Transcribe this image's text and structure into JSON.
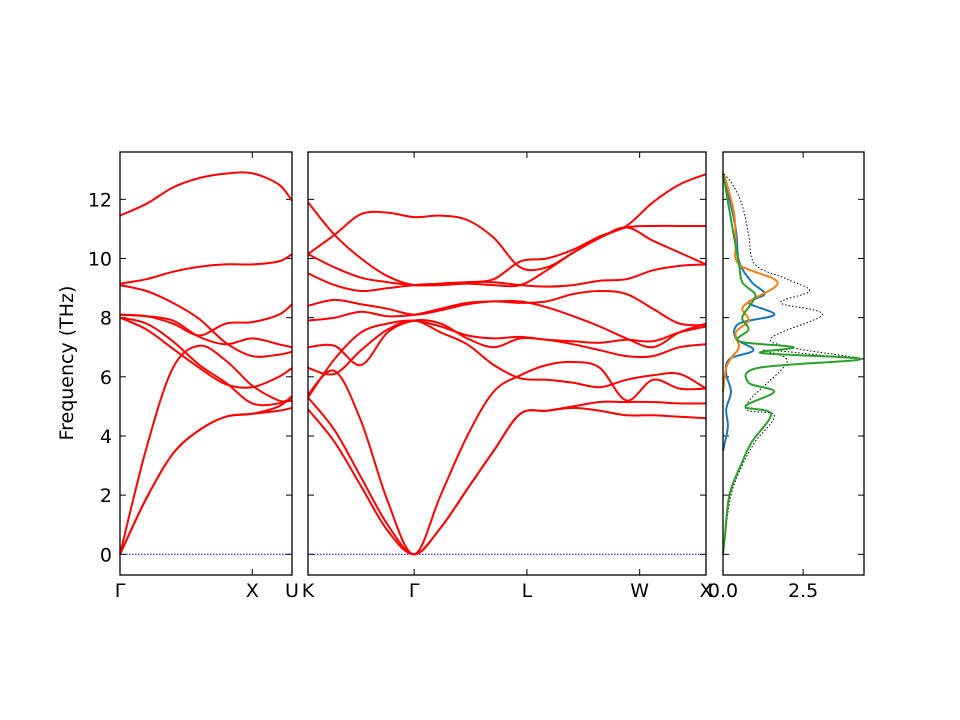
{
  "chart_data": [
    {
      "type": "line",
      "panel": "bands-left",
      "ylabel": "Frequency (THz)",
      "ylim": [
        -0.7,
        13.6
      ],
      "yticks": [
        0,
        2,
        4,
        6,
        8,
        10,
        12
      ],
      "xticks": [
        "Γ",
        "X",
        "U"
      ],
      "band_color": "#ff0000",
      "zero_line_color": "#0000ff",
      "series": [
        {
          "x": [
            0,
            0.2,
            0.4,
            0.6,
            0.8,
            1.0,
            1.2,
            1.3
          ],
          "values": [
            0,
            1.9,
            3.4,
            4.2,
            4.65,
            4.75,
            4.85,
            4.95
          ]
        },
        {
          "x": [
            0,
            0.2,
            0.4,
            0.6,
            0.8,
            1.0,
            1.2,
            1.3
          ],
          "values": [
            0,
            1.9,
            3.4,
            4.2,
            4.65,
            4.75,
            5.0,
            5.35
          ]
        },
        {
          "x": [
            0,
            0.2,
            0.4,
            0.6,
            0.8,
            1.0,
            1.2,
            1.3
          ],
          "values": [
            0,
            3.6,
            6.3,
            7.05,
            6.55,
            5.7,
            5.2,
            5.2
          ]
        },
        {
          "x": [
            0,
            0.2,
            0.4,
            0.6,
            0.8,
            1.0,
            1.2,
            1.3
          ],
          "values": [
            8.0,
            7.6,
            6.95,
            6.3,
            5.75,
            5.65,
            6.0,
            6.3
          ]
        },
        {
          "x": [
            0,
            0.2,
            0.4,
            0.6,
            0.8,
            1.0,
            1.2,
            1.3
          ],
          "values": [
            8.0,
            7.8,
            7.2,
            6.4,
            5.8,
            5.1,
            5.1,
            5.3
          ]
        },
        {
          "x": [
            0,
            0.2,
            0.4,
            0.6,
            0.8,
            1.0,
            1.2,
            1.3
          ],
          "values": [
            8.1,
            8.05,
            7.9,
            7.35,
            7.1,
            7.3,
            7.1,
            7.0
          ]
        },
        {
          "x": [
            0,
            0.2,
            0.4,
            0.6,
            0.8,
            1.0,
            1.2,
            1.3
          ],
          "values": [
            8.1,
            8.05,
            7.8,
            7.4,
            7.8,
            7.85,
            8.1,
            8.45
          ]
        },
        {
          "x": [
            0,
            0.2,
            0.4,
            0.6,
            0.8,
            1.0,
            1.2,
            1.3
          ],
          "values": [
            9.1,
            8.9,
            8.5,
            7.95,
            7.15,
            6.7,
            6.75,
            6.85
          ]
        },
        {
          "x": [
            0,
            0.2,
            0.4,
            0.6,
            0.8,
            1.0,
            1.2,
            1.3
          ],
          "values": [
            9.15,
            9.3,
            9.55,
            9.72,
            9.8,
            9.8,
            9.9,
            10.15
          ]
        },
        {
          "x": [
            0,
            0.2,
            0.4,
            0.6,
            0.8,
            1.0,
            1.2,
            1.3
          ],
          "values": [
            11.45,
            11.85,
            12.4,
            12.72,
            12.87,
            12.88,
            12.5,
            11.95
          ]
        }
      ]
    },
    {
      "type": "line",
      "panel": "bands-right",
      "ylim": [
        -0.7,
        13.6
      ],
      "xticks": [
        "K",
        "Γ",
        "L",
        "W",
        "X"
      ],
      "band_color": "#ff0000",
      "zero_line_color": "#0000ff",
      "series": [
        {
          "x": [
            0,
            0.4,
            0.8,
            1.2,
            1.6,
            2.0,
            2.4,
            2.8,
            3.2,
            3.6,
            4.0,
            4.4,
            4.8,
            5.2,
            5.6,
            6.0
          ],
          "values": [
            4.9,
            3.8,
            2.3,
            0.8,
            0,
            0.9,
            2.2,
            3.5,
            4.75,
            4.85,
            4.95,
            4.85,
            4.7,
            4.7,
            4.65,
            4.6
          ]
        },
        {
          "x": [
            0,
            0.4,
            0.8,
            1.2,
            1.6,
            2.0,
            2.4,
            2.8,
            3.2,
            3.6,
            4.0,
            4.4,
            4.8,
            5.2,
            5.6,
            6.0
          ],
          "values": [
            5.3,
            4.2,
            2.6,
            1.0,
            0,
            0.9,
            2.2,
            3.5,
            4.75,
            4.85,
            5.0,
            5.15,
            5.15,
            5.15,
            5.1,
            5.1
          ]
        },
        {
          "x": [
            0,
            0.4,
            0.8,
            1.2,
            1.6,
            2.0,
            2.4,
            2.8,
            3.2,
            3.6,
            4.0,
            4.4,
            4.8,
            5.2,
            5.6,
            6.0
          ],
          "values": [
            5.4,
            6.2,
            4.5,
            1.8,
            0,
            2.0,
            4.0,
            5.5,
            6.05,
            6.4,
            6.5,
            6.3,
            5.2,
            5.9,
            5.6,
            5.6
          ]
        },
        {
          "x": [
            0,
            0.4,
            0.8,
            1.2,
            1.6,
            2.0,
            2.4,
            2.8,
            3.2,
            3.6,
            4.0,
            4.4,
            4.8,
            5.2,
            5.6,
            6.0
          ],
          "values": [
            6.3,
            6.1,
            6.9,
            7.6,
            7.9,
            7.5,
            7.1,
            6.4,
            5.95,
            5.9,
            5.8,
            5.65,
            5.9,
            6.05,
            6.1,
            5.6
          ]
        },
        {
          "x": [
            0,
            0.4,
            0.8,
            1.2,
            1.6,
            2.0,
            2.4,
            2.8,
            3.2,
            3.6,
            4.0,
            4.4,
            4.8,
            5.2,
            5.6,
            6.0
          ],
          "values": [
            7.0,
            7.05,
            6.4,
            7.5,
            7.9,
            7.8,
            7.3,
            7.0,
            7.3,
            7.25,
            7.1,
            6.9,
            6.7,
            6.7,
            7.0,
            7.1
          ]
        },
        {
          "x": [
            0,
            0.4,
            0.8,
            1.2,
            1.6,
            2.0,
            2.4,
            2.8,
            3.2,
            3.6,
            4.0,
            4.4,
            4.8,
            5.2,
            5.6,
            6.0
          ],
          "values": [
            5.3,
            6.6,
            7.5,
            7.8,
            7.9,
            7.7,
            7.4,
            7.3,
            7.35,
            7.25,
            7.2,
            7.15,
            7.25,
            7.2,
            7.5,
            7.7
          ]
        },
        {
          "x": [
            0,
            0.4,
            0.8,
            1.2,
            1.6,
            2.0,
            2.4,
            2.8,
            3.2,
            3.6,
            4.0,
            4.4,
            4.8,
            5.2,
            5.6,
            6.0
          ],
          "values": [
            7.9,
            8.0,
            8.2,
            8.05,
            8.1,
            8.3,
            8.5,
            8.55,
            8.55,
            8.35,
            8.05,
            7.7,
            7.3,
            7.0,
            7.5,
            7.8
          ]
        },
        {
          "x": [
            0,
            0.4,
            0.8,
            1.2,
            1.6,
            2.0,
            2.4,
            2.8,
            3.2,
            3.6,
            4.0,
            4.4,
            4.8,
            5.2,
            5.6,
            6.0
          ],
          "values": [
            8.4,
            8.6,
            8.45,
            8.3,
            8.1,
            8.25,
            8.45,
            8.55,
            8.5,
            8.55,
            8.8,
            8.9,
            8.8,
            8.3,
            7.8,
            7.75
          ]
        },
        {
          "x": [
            0,
            0.4,
            0.8,
            1.2,
            1.6,
            2.0,
            2.4,
            2.8,
            3.2,
            3.6,
            4.0,
            4.4,
            4.8,
            5.2,
            5.6,
            6.0
          ],
          "values": [
            9.5,
            9.1,
            8.9,
            9.0,
            9.1,
            9.15,
            9.2,
            9.2,
            9.1,
            9.05,
            9.1,
            9.25,
            9.3,
            9.6,
            9.75,
            9.8
          ]
        },
        {
          "x": [
            0,
            0.4,
            0.8,
            1.2,
            1.6,
            2.0,
            2.4,
            2.8,
            3.2,
            3.6,
            4.0,
            4.4,
            4.8,
            5.2,
            5.6,
            6.0
          ],
          "values": [
            10.15,
            9.7,
            9.35,
            9.2,
            9.1,
            9.1,
            9.15,
            9.1,
            9.1,
            9.6,
            10.2,
            10.7,
            11.05,
            10.6,
            10.2,
            9.8
          ]
        },
        {
          "x": [
            0,
            0.4,
            0.8,
            1.2,
            1.6,
            2.0,
            2.4,
            2.8,
            3.2,
            3.6,
            4.0,
            4.4,
            4.8,
            5.2,
            5.6,
            6.0
          ],
          "values": [
            11.9,
            10.8,
            10.0,
            9.4,
            9.1,
            9.15,
            9.2,
            9.3,
            9.9,
            10.0,
            10.3,
            10.75,
            11.1,
            11.9,
            12.5,
            12.85
          ]
        },
        {
          "x": [
            0,
            0.4,
            0.8,
            1.2,
            1.6,
            2.0,
            2.4,
            2.8,
            3.2,
            3.6,
            4.0,
            4.4,
            4.8,
            5.2,
            5.6,
            6.0
          ],
          "values": [
            10.15,
            10.8,
            11.5,
            11.55,
            11.4,
            11.45,
            11.3,
            10.7,
            9.7,
            9.7,
            10.2,
            10.7,
            11.05,
            11.1,
            11.1,
            11.1
          ]
        }
      ]
    },
    {
      "type": "line",
      "panel": "dos",
      "ylim": [
        -0.7,
        13.6
      ],
      "xlim": [
        0,
        4.4
      ],
      "xticks": [
        "0.0",
        "2.5"
      ],
      "series": [
        {
          "color": "#000000",
          "style": "dotted",
          "points": [
            [
              0,
              0
            ],
            [
              0.05,
              0.5
            ],
            [
              0.25,
              2
            ],
            [
              0.6,
              3
            ],
            [
              1.0,
              3.8
            ],
            [
              1.6,
              4.7
            ],
            [
              0.7,
              5
            ],
            [
              2.0,
              6.5
            ],
            [
              1.3,
              6.9
            ],
            [
              4.4,
              6.6
            ],
            [
              1.5,
              7.2
            ],
            [
              3.1,
              8.1
            ],
            [
              1.8,
              8.5
            ],
            [
              2.7,
              8.9
            ],
            [
              2.0,
              9.3
            ],
            [
              1.0,
              9.8
            ],
            [
              0.8,
              10.8
            ],
            [
              0.6,
              11.8
            ],
            [
              0.3,
              12.5
            ],
            [
              0,
              12.9
            ]
          ]
        },
        {
          "color": "#1f77b4",
          "style": "solid",
          "points": [
            [
              0,
              3.5
            ],
            [
              0.15,
              4.3
            ],
            [
              0.1,
              4.9
            ],
            [
              0.25,
              5.5
            ],
            [
              0.1,
              6.1
            ],
            [
              0.2,
              6.6
            ],
            [
              0.95,
              6.9
            ],
            [
              0.4,
              7.3
            ],
            [
              0.5,
              7.8
            ],
            [
              1.6,
              8.1
            ],
            [
              0.8,
              8.5
            ],
            [
              1.3,
              8.8
            ],
            [
              0.9,
              9.2
            ],
            [
              0.5,
              9.9
            ],
            [
              0.4,
              11
            ],
            [
              0.1,
              12.5
            ]
          ]
        },
        {
          "color": "#ff7f0e",
          "style": "solid",
          "points": [
            [
              0,
              5.5
            ],
            [
              0.1,
              6.3
            ],
            [
              0.3,
              6.7
            ],
            [
              0.5,
              7.0
            ],
            [
              0.4,
              7.5
            ],
            [
              0.8,
              7.9
            ],
            [
              0.6,
              8.3
            ],
            [
              0.9,
              8.6
            ],
            [
              1.7,
              9.2
            ],
            [
              0.5,
              9.8
            ],
            [
              0.4,
              10.6
            ],
            [
              0.35,
              11.5
            ],
            [
              0.1,
              12.6
            ],
            [
              0,
              12.85
            ]
          ]
        },
        {
          "color": "#2ca02c",
          "style": "solid",
          "points": [
            [
              0,
              0
            ],
            [
              0.05,
              0.5
            ],
            [
              0.2,
              2
            ],
            [
              0.55,
              3
            ],
            [
              0.9,
              3.8
            ],
            [
              1.5,
              4.75
            ],
            [
              0.7,
              5
            ],
            [
              1.6,
              5.5
            ],
            [
              0.8,
              5.8
            ],
            [
              1.1,
              6.3
            ],
            [
              4.3,
              6.6
            ],
            [
              1.2,
              6.8
            ],
            [
              2.2,
              7.0
            ],
            [
              0.5,
              7.2
            ],
            [
              0.8,
              7.6
            ],
            [
              0.6,
              8.0
            ],
            [
              0.9,
              8.5
            ],
            [
              1.0,
              8.8
            ],
            [
              0.6,
              9.2
            ],
            [
              0.5,
              9.8
            ],
            [
              0.3,
              11
            ],
            [
              0,
              12.9
            ]
          ]
        }
      ]
    }
  ]
}
